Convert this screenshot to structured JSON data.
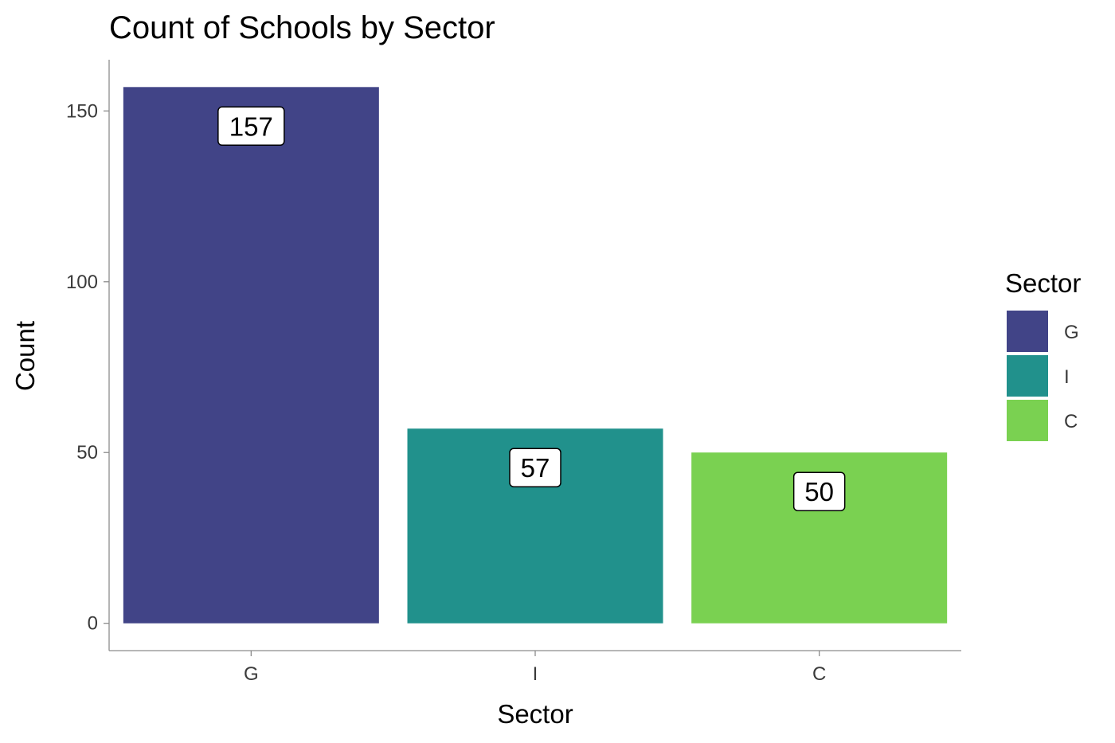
{
  "chart_data": {
    "type": "bar",
    "title": "Count of Schools by Sector",
    "xlabel": "Sector",
    "ylabel": "Count",
    "categories": [
      "G",
      "I",
      "C"
    ],
    "values": [
      157,
      57,
      50
    ],
    "data_labels": [
      "157",
      "57",
      "50"
    ],
    "colors": [
      "#414487",
      "#21918c",
      "#7ad151"
    ],
    "yticks": [
      0,
      50,
      100,
      150
    ],
    "ytick_labels": [
      "0",
      "50",
      "100",
      "150"
    ],
    "ylim": [
      -8,
      165
    ],
    "grid": false,
    "legend": {
      "title": "Sector",
      "position": "right",
      "entries": [
        "G",
        "I",
        "C"
      ]
    }
  }
}
